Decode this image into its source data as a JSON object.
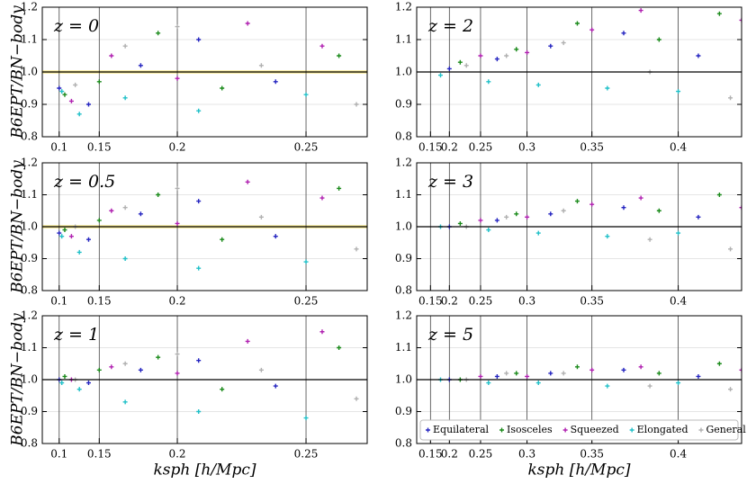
{
  "chart_data": [
    {
      "type": "scatter",
      "annotation": "z = 0",
      "ylabel": "B6EPT/BN−body",
      "xscale": "power",
      "xexponent": 3,
      "xlim": [
        0,
        0.268
      ],
      "xticks": [
        0.1,
        0.15,
        0.2,
        0.25
      ],
      "ylim": [
        0.8,
        1.2
      ],
      "yticks": [
        0.8,
        0.9,
        {
          "value": 1,
          "label": "1.0"
        },
        1.1,
        1.2
      ],
      "grid": true,
      "hline": 1,
      "band": [
        0.995,
        1.005
      ],
      "series": [
        {
          "color": "#2424c0",
          "x": [
            0.1,
            0.14,
            0.18,
            0.21,
            0.24
          ],
          "values": [
            0.95,
            0.9,
            1.02,
            1.1,
            0.97
          ]
        },
        {
          "color": "#1a8a1a",
          "x": [
            0.11,
            0.15,
            0.19,
            0.22,
            0.26
          ],
          "values": [
            0.93,
            0.97,
            1.12,
            0.95,
            1.05
          ]
        },
        {
          "color": "#b020b0",
          "x": [
            0.12,
            0.16,
            0.2,
            0.23,
            0.255
          ],
          "values": [
            0.91,
            1.05,
            0.98,
            1.15,
            1.08
          ]
        },
        {
          "color": "#20c0c8",
          "x": [
            0.105,
            0.13,
            0.17,
            0.21,
            0.25
          ],
          "values": [
            0.94,
            0.87,
            0.92,
            0.88,
            0.93
          ]
        },
        {
          "color": "#b0b0b0",
          "x": [
            0.125,
            0.17,
            0.2,
            0.235,
            0.265
          ],
          "values": [
            0.96,
            1.08,
            1.14,
            1.02,
            0.9
          ]
        }
      ]
    },
    {
      "type": "scatter",
      "annotation": "z = 2",
      "xscale": "power",
      "xexponent": 3,
      "xlim": [
        0,
        0.43
      ],
      "xticks": [
        0.15,
        0.2,
        0.25,
        0.3,
        0.35,
        0.4
      ],
      "ylim": [
        0.8,
        1.2
      ],
      "yticks": [
        0.8,
        0.9,
        {
          "value": 1,
          "label": "1.0"
        },
        1.1,
        1.2
      ],
      "grid": true,
      "hline": 1,
      "series": [
        {
          "color": "#2424c0",
          "x": [
            0.2,
            0.27,
            0.32,
            0.37,
            0.41
          ],
          "values": [
            1.01,
            1.04,
            1.08,
            1.12,
            1.05
          ]
        },
        {
          "color": "#1a8a1a",
          "x": [
            0.22,
            0.29,
            0.34,
            0.39,
            0.42
          ],
          "values": [
            1.03,
            1.07,
            1.15,
            1.1,
            1.18
          ]
        },
        {
          "color": "#b020b0",
          "x": [
            0.25,
            0.3,
            0.35,
            0.38,
            0.43
          ],
          "values": [
            1.05,
            1.06,
            1.13,
            1.19,
            1.16
          ]
        },
        {
          "color": "#20c0c8",
          "x": [
            0.18,
            0.26,
            0.31,
            0.36,
            0.4
          ],
          "values": [
            0.99,
            0.97,
            0.96,
            0.95,
            0.94
          ]
        },
        {
          "color": "#b0b0b0",
          "x": [
            0.23,
            0.28,
            0.33,
            0.385,
            0.425
          ],
          "values": [
            1.02,
            1.05,
            1.09,
            1.0,
            0.92
          ]
        }
      ]
    },
    {
      "type": "scatter",
      "annotation": "z = 0.5",
      "ylabel": "B6EPT/BN−body",
      "xscale": "power",
      "xexponent": 3,
      "xlim": [
        0,
        0.268
      ],
      "xticks": [
        0.1,
        0.15,
        0.2,
        0.25
      ],
      "ylim": [
        0.8,
        1.2
      ],
      "yticks": [
        0.8,
        0.9,
        {
          "value": 1,
          "label": "1.0"
        },
        1.1,
        1.2
      ],
      "grid": true,
      "hline": 1,
      "band": [
        0.995,
        1.005
      ],
      "series": [
        {
          "color": "#2424c0",
          "x": [
            0.1,
            0.14,
            0.18,
            0.21,
            0.24
          ],
          "values": [
            0.98,
            0.96,
            1.04,
            1.08,
            0.97
          ]
        },
        {
          "color": "#1a8a1a",
          "x": [
            0.11,
            0.15,
            0.19,
            0.22,
            0.26
          ],
          "values": [
            0.99,
            1.02,
            1.1,
            0.96,
            1.12
          ]
        },
        {
          "color": "#b020b0",
          "x": [
            0.12,
            0.16,
            0.2,
            0.23,
            0.255
          ],
          "values": [
            0.97,
            1.05,
            1.01,
            1.14,
            1.09
          ]
        },
        {
          "color": "#20c0c8",
          "x": [
            0.105,
            0.13,
            0.17,
            0.21,
            0.25
          ],
          "values": [
            0.97,
            0.92,
            0.9,
            0.87,
            0.89
          ]
        },
        {
          "color": "#b0b0b0",
          "x": [
            0.125,
            0.17,
            0.2,
            0.235,
            0.265
          ],
          "values": [
            1.0,
            1.06,
            1.12,
            1.03,
            0.93
          ]
        }
      ]
    },
    {
      "type": "scatter",
      "annotation": "z = 3",
      "xscale": "power",
      "xexponent": 3,
      "xlim": [
        0,
        0.43
      ],
      "xticks": [
        0.15,
        0.2,
        0.25,
        0.3,
        0.35,
        0.4
      ],
      "ylim": [
        0.8,
        1.2
      ],
      "yticks": [
        0.8,
        0.9,
        {
          "value": 1,
          "label": "1.0"
        },
        1.1,
        1.2
      ],
      "grid": true,
      "hline": 1,
      "series": [
        {
          "color": "#2424c0",
          "x": [
            0.2,
            0.27,
            0.32,
            0.37,
            0.41
          ],
          "values": [
            1.0,
            1.02,
            1.04,
            1.06,
            1.03
          ]
        },
        {
          "color": "#1a8a1a",
          "x": [
            0.22,
            0.29,
            0.34,
            0.39,
            0.42
          ],
          "values": [
            1.01,
            1.04,
            1.08,
            1.05,
            1.1
          ]
        },
        {
          "color": "#b020b0",
          "x": [
            0.25,
            0.3,
            0.35,
            0.38,
            0.43
          ],
          "values": [
            1.02,
            1.03,
            1.07,
            1.09,
            1.06
          ]
        },
        {
          "color": "#20c0c8",
          "x": [
            0.18,
            0.26,
            0.31,
            0.36,
            0.4
          ],
          "values": [
            1.0,
            0.99,
            0.98,
            0.97,
            0.98
          ]
        },
        {
          "color": "#b0b0b0",
          "x": [
            0.23,
            0.28,
            0.33,
            0.385,
            0.425
          ],
          "values": [
            1.0,
            1.03,
            1.05,
            0.96,
            0.93
          ]
        }
      ]
    },
    {
      "type": "scatter",
      "annotation": "z = 1",
      "ylabel": "B6EPT/BN−body",
      "xlabel": "ksph [h/Mpc]",
      "xscale": "power",
      "xexponent": 3,
      "xlim": [
        0,
        0.268
      ],
      "xticks": [
        0.1,
        0.15,
        0.2,
        0.25
      ],
      "ylim": [
        0.8,
        1.2
      ],
      "yticks": [
        0.8,
        0.9,
        {
          "value": 1,
          "label": "1.0"
        },
        1.1,
        1.2
      ],
      "grid": true,
      "hline": 1,
      "series": [
        {
          "color": "#2424c0",
          "x": [
            0.1,
            0.14,
            0.18,
            0.21,
            0.24
          ],
          "values": [
            1.0,
            0.99,
            1.03,
            1.06,
            0.98
          ]
        },
        {
          "color": "#1a8a1a",
          "x": [
            0.11,
            0.15,
            0.19,
            0.22,
            0.26
          ],
          "values": [
            1.01,
            1.03,
            1.07,
            0.97,
            1.1
          ]
        },
        {
          "color": "#b020b0",
          "x": [
            0.12,
            0.16,
            0.2,
            0.23,
            0.255
          ],
          "values": [
            1.0,
            1.04,
            1.02,
            1.12,
            1.15
          ]
        },
        {
          "color": "#20c0c8",
          "x": [
            0.105,
            0.13,
            0.17,
            0.21,
            0.25
          ],
          "values": [
            0.99,
            0.97,
            0.93,
            0.9,
            0.88
          ]
        },
        {
          "color": "#b0b0b0",
          "x": [
            0.125,
            0.17,
            0.2,
            0.235,
            0.265
          ],
          "values": [
            1.0,
            1.05,
            1.08,
            1.03,
            0.94
          ]
        }
      ]
    },
    {
      "type": "scatter",
      "annotation": "z = 5",
      "xlabel": "ksph [h/Mpc]",
      "legend": "lower right",
      "xscale": "power",
      "xexponent": 3,
      "xlim": [
        0,
        0.43
      ],
      "xticks": [
        0.15,
        0.2,
        0.25,
        0.3,
        0.35,
        0.4
      ],
      "ylim": [
        0.8,
        1.2
      ],
      "yticks": [
        0.8,
        0.9,
        {
          "value": 1,
          "label": "1.0"
        },
        1.1,
        1.2
      ],
      "grid": true,
      "hline": 1,
      "series": [
        {
          "name": "Equilateral",
          "color": "#2424c0",
          "x": [
            0.2,
            0.27,
            0.32,
            0.37,
            0.41
          ],
          "values": [
            1.0,
            1.01,
            1.02,
            1.03,
            1.01
          ]
        },
        {
          "name": "Isosceles",
          "color": "#1a8a1a",
          "x": [
            0.22,
            0.29,
            0.34,
            0.39,
            0.42
          ],
          "values": [
            1.0,
            1.02,
            1.04,
            1.02,
            1.05
          ]
        },
        {
          "name": "Squeezed",
          "color": "#b020b0",
          "x": [
            0.25,
            0.3,
            0.35,
            0.38,
            0.43
          ],
          "values": [
            1.01,
            1.01,
            1.03,
            1.04,
            1.03
          ]
        },
        {
          "name": "Elongated",
          "color": "#20c0c8",
          "x": [
            0.18,
            0.26,
            0.31,
            0.36,
            0.4
          ],
          "values": [
            1.0,
            0.99,
            0.99,
            0.98,
            0.99
          ]
        },
        {
          "name": "General",
          "color": "#b0b0b0",
          "x": [
            0.23,
            0.28,
            0.33,
            0.385,
            0.425
          ],
          "values": [
            1.0,
            1.02,
            1.02,
            0.98,
            0.97
          ]
        }
      ]
    }
  ]
}
